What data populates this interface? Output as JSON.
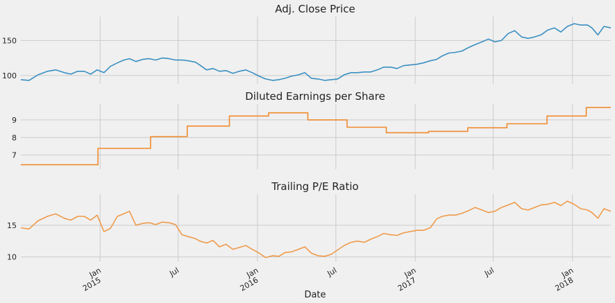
{
  "colors": {
    "background": "#f0f0f0",
    "grid": "#cbcbcb",
    "price": "#3a8fc1",
    "eps": "#f08a2c",
    "pe": "#ef9a4a"
  },
  "chart_data": [
    {
      "type": "line",
      "title": "Adj. Close Price",
      "ylim": [
        88,
        184
      ],
      "yticks": [
        "100",
        "150"
      ],
      "ytick_values": [
        100,
        150
      ],
      "series": [
        {
          "color": "#3a8fc1",
          "x": [
            "2014-07-01",
            "2014-07-20",
            "2014-08-10",
            "2014-09-01",
            "2014-09-20",
            "2014-10-10",
            "2014-10-25",
            "2014-11-10",
            "2014-11-25",
            "2014-12-10",
            "2014-12-25",
            "2015-01-10",
            "2015-01-25",
            "2015-02-10",
            "2015-02-25",
            "2015-03-10",
            "2015-03-25",
            "2015-04-10",
            "2015-04-25",
            "2015-05-10",
            "2015-05-25",
            "2015-06-10",
            "2015-06-25",
            "2015-07-10",
            "2015-07-25",
            "2015-08-10",
            "2015-08-20",
            "2015-09-05",
            "2015-09-20",
            "2015-10-05",
            "2015-10-20",
            "2015-11-05",
            "2015-11-20",
            "2015-12-05",
            "2015-12-20",
            "2016-01-05",
            "2016-01-20",
            "2016-02-05",
            "2016-02-20",
            "2016-03-05",
            "2016-03-20",
            "2016-04-05",
            "2016-04-20",
            "2016-05-05",
            "2016-05-20",
            "2016-06-05",
            "2016-06-20",
            "2016-07-05",
            "2016-07-20",
            "2016-08-05",
            "2016-08-20",
            "2016-09-05",
            "2016-09-20",
            "2016-10-05",
            "2016-10-20",
            "2016-11-05",
            "2016-11-20",
            "2016-12-05",
            "2016-12-20",
            "2017-01-05",
            "2017-01-20",
            "2017-02-05",
            "2017-02-20",
            "2017-03-05",
            "2017-03-20",
            "2017-04-05",
            "2017-04-20",
            "2017-05-05",
            "2017-05-20",
            "2017-06-05",
            "2017-06-20",
            "2017-07-05",
            "2017-07-20",
            "2017-08-05",
            "2017-08-20",
            "2017-09-05",
            "2017-09-20",
            "2017-10-05",
            "2017-10-20",
            "2017-11-05",
            "2017-11-20",
            "2017-12-05",
            "2017-12-20",
            "2018-01-05",
            "2018-01-20",
            "2018-02-05",
            "2018-02-15",
            "2018-03-01",
            "2018-03-15",
            "2018-03-31"
          ],
          "y": [
            94,
            93,
            101,
            106,
            108,
            104,
            102,
            106,
            106,
            102,
            108,
            104,
            113,
            118,
            122,
            124,
            120,
            123,
            124,
            122,
            125,
            124,
            122,
            122,
            121,
            119,
            115,
            108,
            110,
            106,
            107,
            103,
            106,
            108,
            104,
            99,
            95,
            93,
            94,
            96,
            99,
            101,
            104,
            96,
            95,
            93,
            94,
            95,
            101,
            104,
            104,
            105,
            105,
            108,
            112,
            112,
            110,
            114,
            115,
            116,
            118,
            121,
            123,
            128,
            132,
            133,
            135,
            140,
            144,
            148,
            152,
            148,
            150,
            160,
            164,
            155,
            153,
            155,
            158,
            165,
            168,
            162,
            170,
            174,
            172,
            172,
            168,
            158,
            170,
            168
          ]
        }
      ]
    },
    {
      "type": "line",
      "title": "Diluted Earnings per Share",
      "ylim": [
        6.2,
        9.9
      ],
      "yticks": [
        "7",
        "8",
        "9"
      ],
      "ytick_values": [
        7,
        8,
        9
      ],
      "series": [
        {
          "color": "#f08a2c",
          "step": true,
          "x": [
            "2014-07-01",
            "2014-12-27",
            "2015-04-28",
            "2015-07-22",
            "2015-10-28",
            "2016-01-27",
            "2016-04-27",
            "2016-07-27",
            "2016-10-26",
            "2017-02-01",
            "2017-05-03",
            "2017-08-02",
            "2017-11-03",
            "2018-02-02",
            "2018-03-31"
          ],
          "y": [
            6.45,
            7.38,
            8.05,
            8.65,
            9.22,
            9.4,
            9.0,
            8.58,
            8.27,
            8.35,
            8.55,
            8.78,
            9.22,
            9.7,
            9.7
          ]
        }
      ]
    },
    {
      "type": "line",
      "title": "Trailing P/E Ratio",
      "ylim": [
        9.3,
        19.9
      ],
      "yticks": [
        "10",
        "15"
      ],
      "ytick_values": [
        10,
        15
      ],
      "series": [
        {
          "color": "#ef9a4a",
          "x": [
            "2014-07-01",
            "2014-07-20",
            "2014-08-10",
            "2014-09-01",
            "2014-09-20",
            "2014-10-10",
            "2014-10-25",
            "2014-11-10",
            "2014-11-25",
            "2014-12-10",
            "2014-12-25",
            "2015-01-10",
            "2015-01-25",
            "2015-02-10",
            "2015-02-25",
            "2015-03-10",
            "2015-03-25",
            "2015-04-10",
            "2015-04-25",
            "2015-05-10",
            "2015-05-25",
            "2015-06-10",
            "2015-06-25",
            "2015-07-10",
            "2015-07-25",
            "2015-08-10",
            "2015-08-20",
            "2015-09-05",
            "2015-09-20",
            "2015-10-05",
            "2015-10-20",
            "2015-11-05",
            "2015-11-20",
            "2015-12-05",
            "2015-12-20",
            "2016-01-05",
            "2016-01-20",
            "2016-02-05",
            "2016-02-20",
            "2016-03-05",
            "2016-03-20",
            "2016-04-05",
            "2016-04-20",
            "2016-05-05",
            "2016-05-20",
            "2016-06-05",
            "2016-06-20",
            "2016-07-05",
            "2016-07-20",
            "2016-08-05",
            "2016-08-20",
            "2016-09-05",
            "2016-09-20",
            "2016-10-05",
            "2016-10-20",
            "2016-11-05",
            "2016-11-20",
            "2016-12-05",
            "2016-12-20",
            "2017-01-05",
            "2017-01-20",
            "2017-02-05",
            "2017-02-20",
            "2017-03-05",
            "2017-03-20",
            "2017-04-05",
            "2017-04-20",
            "2017-05-05",
            "2017-05-20",
            "2017-06-05",
            "2017-06-20",
            "2017-07-05",
            "2017-07-20",
            "2017-08-05",
            "2017-08-20",
            "2017-09-05",
            "2017-09-20",
            "2017-10-05",
            "2017-10-20",
            "2017-11-05",
            "2017-11-20",
            "2017-12-05",
            "2017-12-20",
            "2018-01-05",
            "2018-01-20",
            "2018-02-05",
            "2018-02-15",
            "2018-03-01",
            "2018-03-15",
            "2018-03-31"
          ],
          "y": [
            14.6,
            14.4,
            15.7,
            16.4,
            16.8,
            16.1,
            15.8,
            16.4,
            16.4,
            15.8,
            16.6,
            14.0,
            14.5,
            16.4,
            16.8,
            17.2,
            15.0,
            15.3,
            15.4,
            15.1,
            15.5,
            15.4,
            15.1,
            13.5,
            13.2,
            12.9,
            12.5,
            12.2,
            12.6,
            11.6,
            12.0,
            11.2,
            11.5,
            11.8,
            11.2,
            10.6,
            9.9,
            10.2,
            10.1,
            10.7,
            10.8,
            11.2,
            11.6,
            10.6,
            10.2,
            10.1,
            10.4,
            11.1,
            11.8,
            12.3,
            12.5,
            12.3,
            12.8,
            13.2,
            13.7,
            13.5,
            13.4,
            13.8,
            14.0,
            14.2,
            14.2,
            14.6,
            16.0,
            16.4,
            16.6,
            16.6,
            16.9,
            17.3,
            17.8,
            17.4,
            17.0,
            17.2,
            17.8,
            18.2,
            18.6,
            17.6,
            17.4,
            17.8,
            18.2,
            18.3,
            18.6,
            18.1,
            18.8,
            18.3,
            17.6,
            17.4,
            17.0,
            16.1,
            17.6,
            17.2
          ]
        }
      ]
    }
  ],
  "x_axis": {
    "label": "Date",
    "range": [
      "2014-07-01",
      "2018-03-31"
    ],
    "ticks": [
      {
        "date": "2015-01-01",
        "label": "Jan",
        "year": "2015"
      },
      {
        "date": "2015-07-01",
        "label": "Jul",
        "year": ""
      },
      {
        "date": "2016-01-01",
        "label": "Jan",
        "year": "2016"
      },
      {
        "date": "2016-07-01",
        "label": "Jul",
        "year": ""
      },
      {
        "date": "2017-01-01",
        "label": "Jan",
        "year": "2017"
      },
      {
        "date": "2017-07-01",
        "label": "Jul",
        "year": ""
      },
      {
        "date": "2018-01-01",
        "label": "Jan",
        "year": "2018"
      }
    ]
  }
}
